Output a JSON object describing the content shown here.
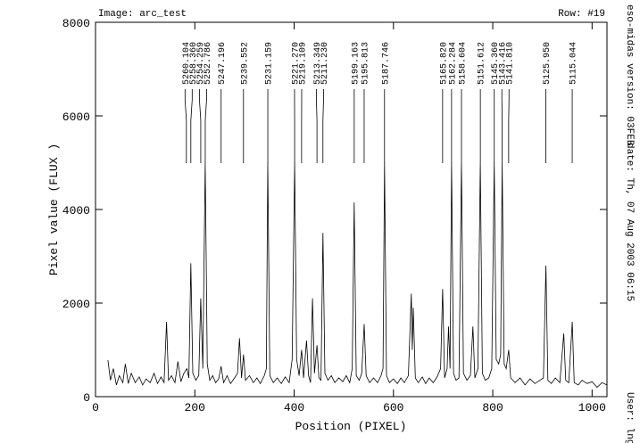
{
  "chart_data": {
    "type": "line",
    "title": "Image: arc_test",
    "subtitle": "Row: #19",
    "xlabel": "Position (PIXEL)",
    "ylabel": "Pixel value (FLUX )",
    "side_texts": [
      "eso-midas version: 03FEB",
      "date: Th, 07 Aug 2003 06:15",
      "User: lng"
    ],
    "xlim": [
      0,
      1030
    ],
    "ylim": [
      0,
      8000
    ],
    "xticks": [
      0,
      200,
      400,
      600,
      800,
      1000
    ],
    "yticks": [
      0,
      2000,
      4000,
      6000,
      8000
    ],
    "color": "#000000",
    "x": [
      25,
      30,
      36,
      42,
      48,
      55,
      60,
      66,
      72,
      80,
      88,
      95,
      102,
      110,
      118,
      125,
      132,
      138,
      143,
      147,
      153,
      160,
      166,
      172,
      178,
      184,
      188,
      192,
      196,
      202,
      208,
      212,
      216,
      221,
      225,
      230,
      236,
      242,
      248,
      253,
      258,
      265,
      272,
      280,
      286,
      290,
      294,
      298,
      302,
      310,
      318,
      325,
      332,
      340,
      344,
      347,
      351,
      358,
      366,
      374,
      382,
      390,
      396,
      401,
      405,
      410,
      415,
      419,
      425,
      429,
      433,
      437,
      441,
      446,
      450,
      454,
      458,
      462,
      468,
      475,
      482,
      490,
      498,
      505,
      512,
      517,
      521,
      525,
      531,
      536,
      541,
      545,
      552,
      560,
      568,
      575,
      579,
      582,
      586,
      592,
      600,
      608,
      615,
      622,
      630,
      636,
      638,
      640,
      644,
      650,
      658,
      665,
      672,
      680,
      688,
      695,
      699,
      703,
      708,
      711,
      714,
      717,
      721,
      726,
      732,
      737,
      741,
      748,
      755,
      760,
      764,
      770,
      775,
      779,
      785,
      792,
      798,
      803,
      807,
      812,
      816,
      819,
      823,
      827,
      832,
      836,
      845,
      855,
      865,
      875,
      885,
      895,
      902,
      907,
      911,
      918,
      926,
      935,
      943,
      947,
      953,
      960,
      964,
      972,
      980,
      990,
      1000,
      1010,
      1020,
      1030
    ],
    "y": [
      780,
      350,
      600,
      250,
      450,
      300,
      700,
      280,
      500,
      300,
      420,
      250,
      380,
      300,
      500,
      280,
      420,
      300,
      1600,
      350,
      450,
      300,
      750,
      320,
      500,
      600,
      400,
      2850,
      500,
      350,
      450,
      2100,
      600,
      5000,
      700,
      350,
      450,
      300,
      380,
      650,
      300,
      450,
      280,
      400,
      500,
      1250,
      400,
      900,
      350,
      450,
      300,
      400,
      280,
      450,
      600,
      5000,
      450,
      300,
      400,
      280,
      420,
      300,
      800,
      5000,
      800,
      450,
      1000,
      400,
      1200,
      450,
      300,
      2100,
      500,
      1100,
      400,
      350,
      3500,
      500,
      350,
      450,
      300,
      400,
      320,
      450,
      300,
      600,
      4150,
      450,
      350,
      500,
      1550,
      450,
      300,
      400,
      300,
      450,
      600,
      5000,
      450,
      300,
      380,
      280,
      400,
      300,
      450,
      2200,
      1000,
      1900,
      400,
      300,
      420,
      280,
      400,
      300,
      420,
      600,
      2300,
      400,
      600,
      1500,
      600,
      5000,
      500,
      350,
      400,
      5000,
      500,
      350,
      450,
      1500,
      400,
      600,
      5000,
      500,
      350,
      400,
      600,
      5000,
      800,
      700,
      900,
      5000,
      700,
      600,
      1000,
      400,
      300,
      400,
      250,
      380,
      280,
      350,
      400,
      2800,
      350,
      280,
      400,
      300,
      1350,
      350,
      300,
      1600,
      300,
      250,
      350,
      280,
      320,
      200,
      300,
      250
    ],
    "annotations": [
      {
        "label": "5260.104",
        "x": 183
      },
      {
        "label": "5258.360",
        "x": 192
      },
      {
        "label": "5254.259",
        "x": 212
      },
      {
        "label": "5252.786",
        "x": 221
      },
      {
        "label": "5247.196",
        "x": 253
      },
      {
        "label": "5239.552",
        "x": 298
      },
      {
        "label": "5231.159",
        "x": 347
      },
      {
        "label": "5221.270",
        "x": 401
      },
      {
        "label": "5219.109",
        "x": 415
      },
      {
        "label": "5213.349",
        "x": 446
      },
      {
        "label": "5211.230",
        "x": 458
      },
      {
        "label": "5199.163",
        "x": 521
      },
      {
        "label": "5195.813",
        "x": 541
      },
      {
        "label": "5187.746",
        "x": 582
      },
      {
        "label": "5165.820",
        "x": 699
      },
      {
        "label": "5162.284",
        "x": 717
      },
      {
        "label": "5158.604",
        "x": 737
      },
      {
        "label": "5151.612",
        "x": 775
      },
      {
        "label": "5145.360",
        "x": 803
      },
      {
        "label": "5143.416",
        "x": 819
      },
      {
        "label": "5141.810",
        "x": 832
      },
      {
        "label": "5125.950",
        "x": 907
      },
      {
        "label": "5115.044",
        "x": 960
      }
    ]
  }
}
